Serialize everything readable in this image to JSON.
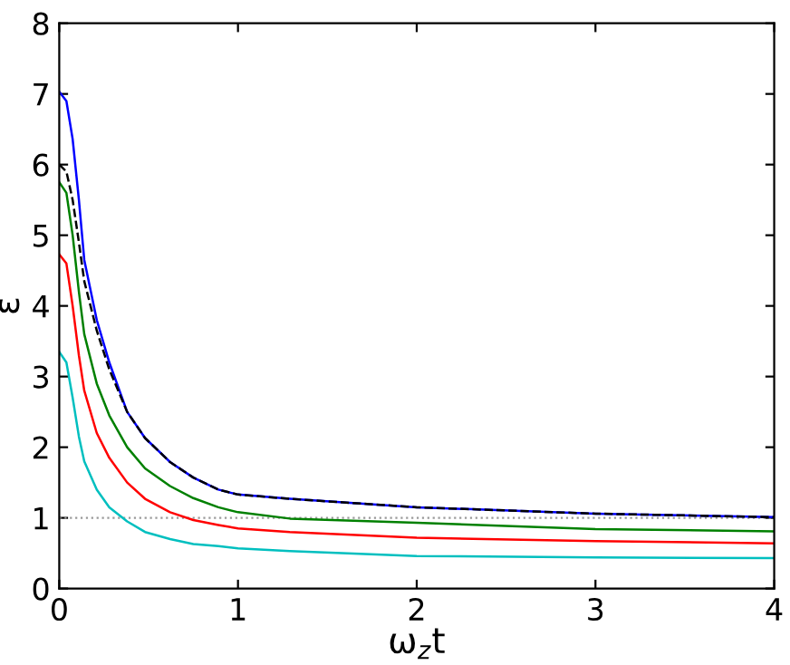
{
  "chart_data": {
    "type": "line",
    "xlabel": "ω$_{z}$t",
    "ylabel": "ε",
    "xlim": [
      0,
      4
    ],
    "ylim": [
      0,
      8
    ],
    "xticks": [
      0,
      1,
      2,
      3,
      4
    ],
    "yticks": [
      0,
      1,
      2,
      3,
      4,
      5,
      6,
      7,
      8
    ],
    "grid": false,
    "legend": false,
    "marker": "none",
    "x": [
      0,
      0.04,
      0.075,
      0.11,
      0.14,
      0.21,
      0.28,
      0.38,
      0.48,
      0.62,
      0.75,
      0.89,
      1.0,
      1.29,
      2,
      3,
      4
    ],
    "series": [
      {
        "color": "#0000ff",
        "line_style": "solid",
        "values": [
          7.03,
          6.9,
          6.36,
          5.5,
          4.65,
          3.8,
          3.2,
          2.5,
          2.13,
          1.79,
          1.57,
          1.4,
          1.33,
          1.27,
          1.15,
          1.06,
          1.01
        ]
      },
      {
        "color": "#000000",
        "line_style": "dashed",
        "values": [
          6.0,
          5.9,
          5.5,
          4.9,
          4.35,
          3.65,
          3.1,
          2.5,
          2.13,
          1.79,
          1.57,
          1.4,
          1.33,
          1.27,
          1.15,
          1.06,
          1.01
        ]
      },
      {
        "color": "#008000",
        "line_style": "solid",
        "values": [
          5.75,
          5.6,
          5.0,
          4.2,
          3.6,
          2.9,
          2.45,
          2.0,
          1.7,
          1.45,
          1.28,
          1.15,
          1.08,
          0.99,
          0.93,
          0.84,
          0.81
        ]
      },
      {
        "color": "#ff0000",
        "line_style": "solid",
        "values": [
          4.73,
          4.6,
          4.0,
          3.3,
          2.8,
          2.2,
          1.85,
          1.5,
          1.27,
          1.08,
          0.97,
          0.9,
          0.85,
          0.8,
          0.72,
          0.67,
          0.64
        ]
      },
      {
        "color": "#00bfbf",
        "line_style": "solid",
        "values": [
          3.35,
          3.2,
          2.7,
          2.15,
          1.8,
          1.4,
          1.15,
          0.95,
          0.8,
          0.7,
          0.63,
          0.6,
          0.57,
          0.53,
          0.46,
          0.44,
          0.43
        ]
      }
    ],
    "ref_lines": [
      {
        "axis": "y",
        "value": 1,
        "color": "#999999",
        "line_style": "dotted"
      }
    ]
  }
}
